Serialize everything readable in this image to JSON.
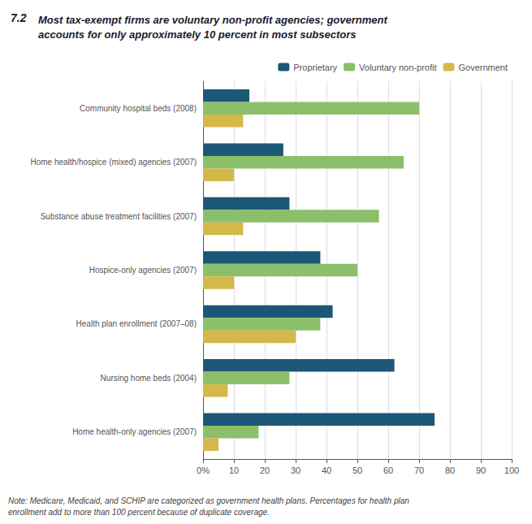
{
  "chart_data": {
    "type": "bar",
    "orientation": "horizontal",
    "title": "7.2",
    "subtitle": "Most tax-exempt firms are voluntary non-profit agencies; government\naccounts for only approximately 10 percent in most subsectors",
    "categories": [
      "Community hospital beds (2008)",
      "Home health/hospice (mixed) agencies (2007)",
      "Substance abuse treatment facilities (2007)",
      "Hospice-only agencies (2007)",
      "Health plan enrollment (2007–08)",
      "Nursing home beds (2004)",
      "Home health-only agencies (2007)"
    ],
    "series": [
      {
        "name": "Proprietary",
        "color": "#1d5778",
        "values": [
          15,
          26,
          28,
          38,
          42,
          62,
          75
        ]
      },
      {
        "name": "Voluntary non-profit",
        "color": "#8cbf6a",
        "values": [
          70,
          65,
          57,
          50,
          38,
          28,
          18
        ]
      },
      {
        "name": "Government",
        "color": "#d4b84a",
        "values": [
          13,
          10,
          13,
          10,
          30,
          8,
          5
        ]
      }
    ],
    "xlim": [
      0,
      100
    ],
    "xticks": [
      {
        "value": 0,
        "label": "0%"
      },
      10,
      20,
      30,
      40,
      50,
      60,
      70,
      80,
      90,
      100
    ],
    "grid": true,
    "legend": "upper right",
    "annotations": [
      "Note: Medicare, Medicaid, and SCHIP are categorized as government health plans. Percentages for health plan\nenrollment add to more than 100 percent because of duplicate coverage."
    ]
  }
}
